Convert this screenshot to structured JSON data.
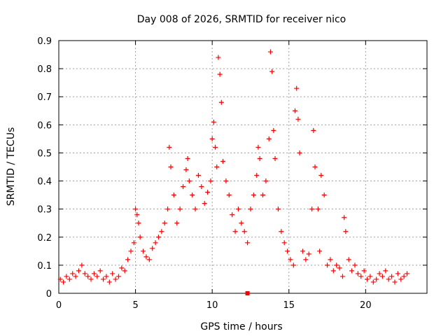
{
  "chart_data": {
    "type": "scatter",
    "title": "Day 008 of 2026, SRMTID for receiver nico",
    "xlabel": "GPS time / hours",
    "ylabel": "SRMTID / TECUs",
    "xlim": [
      0,
      24
    ],
    "ylim": [
      0,
      0.9
    ],
    "xticks": [
      0,
      5,
      10,
      15,
      20
    ],
    "yticks": [
      0,
      0.1,
      0.2,
      0.3,
      0.4,
      0.5,
      0.6,
      0.7,
      0.8,
      0.9
    ],
    "grid": true,
    "marker": "+",
    "color": "#ff0000",
    "series": [
      {
        "name": "SRMTID",
        "x": [
          0.1,
          0.3,
          0.5,
          0.7,
          0.9,
          1.1,
          1.3,
          1.5,
          1.7,
          1.9,
          2.1,
          2.3,
          2.5,
          2.7,
          2.9,
          3.1,
          3.3,
          3.5,
          3.7,
          3.9,
          4.1,
          4.3,
          4.5,
          4.7,
          4.9,
          5.0,
          5.1,
          5.2,
          5.3,
          5.5,
          5.7,
          5.9,
          6.1,
          6.3,
          6.5,
          6.7,
          6.9,
          7.1,
          7.2,
          7.3,
          7.5,
          7.7,
          7.9,
          8.1,
          8.3,
          8.4,
          8.5,
          8.7,
          8.9,
          9.1,
          9.3,
          9.5,
          9.7,
          9.9,
          10.0,
          10.1,
          10.2,
          10.3,
          10.4,
          10.5,
          10.6,
          10.7,
          10.9,
          11.1,
          11.3,
          11.5,
          11.7,
          11.9,
          12.1,
          12.3,
          12.5,
          12.7,
          12.9,
          13.0,
          13.1,
          13.3,
          13.5,
          13.7,
          13.8,
          13.9,
          14.0,
          14.1,
          14.3,
          14.5,
          14.7,
          14.9,
          15.1,
          15.3,
          15.4,
          15.5,
          15.6,
          15.7,
          15.9,
          16.1,
          16.3,
          16.5,
          16.6,
          16.7,
          16.9,
          17.0,
          17.1,
          17.3,
          17.5,
          17.7,
          17.9,
          18.1,
          18.3,
          18.5,
          18.6,
          18.7,
          18.9,
          19.1,
          19.3,
          19.5,
          19.7,
          19.9,
          20.1,
          20.3,
          20.5,
          20.7,
          20.9,
          21.1,
          21.3,
          21.5,
          21.7,
          21.9,
          22.1,
          22.3,
          22.5,
          22.7
        ],
        "y": [
          0.05,
          0.04,
          0.06,
          0.05,
          0.07,
          0.06,
          0.08,
          0.1,
          0.07,
          0.06,
          0.05,
          0.07,
          0.06,
          0.08,
          0.05,
          0.06,
          0.04,
          0.07,
          0.05,
          0.06,
          0.09,
          0.08,
          0.12,
          0.15,
          0.18,
          0.3,
          0.28,
          0.25,
          0.2,
          0.15,
          0.13,
          0.12,
          0.16,
          0.18,
          0.2,
          0.22,
          0.25,
          0.3,
          0.52,
          0.45,
          0.35,
          0.25,
          0.3,
          0.38,
          0.44,
          0.48,
          0.4,
          0.35,
          0.3,
          0.42,
          0.38,
          0.32,
          0.36,
          0.4,
          0.55,
          0.61,
          0.52,
          0.45,
          0.84,
          0.78,
          0.68,
          0.47,
          0.4,
          0.35,
          0.28,
          0.22,
          0.3,
          0.25,
          0.22,
          0.18,
          0.3,
          0.35,
          0.42,
          0.52,
          0.48,
          0.35,
          0.4,
          0.55,
          0.86,
          0.79,
          0.58,
          0.48,
          0.3,
          0.22,
          0.18,
          0.15,
          0.12,
          0.1,
          0.65,
          0.73,
          0.62,
          0.5,
          0.15,
          0.12,
          0.14,
          0.3,
          0.58,
          0.45,
          0.3,
          0.15,
          0.42,
          0.35,
          0.1,
          0.12,
          0.08,
          0.1,
          0.09,
          0.06,
          0.27,
          0.22,
          0.12,
          0.08,
          0.1,
          0.07,
          0.06,
          0.08,
          0.05,
          0.06,
          0.04,
          0.05,
          0.07,
          0.06,
          0.08,
          0.05,
          0.06,
          0.04,
          0.07,
          0.05,
          0.06,
          0.07
        ]
      },
      {
        "name": "marker",
        "x": [
          12.3
        ],
        "y": [
          0.0
        ]
      }
    ]
  }
}
